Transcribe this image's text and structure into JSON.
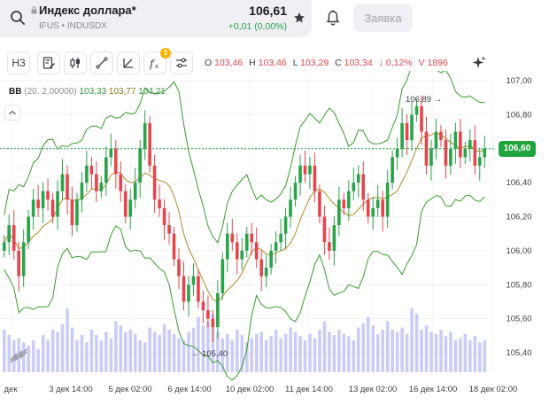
{
  "header": {
    "instrument_name": "Индекс доллара*",
    "instrument_sub": "IFUS • INDUSDX",
    "price": "106,61",
    "change": "+0,01 (0,00%)",
    "order_button": "Заявка"
  },
  "toolbar": {
    "timeframe": "Н3",
    "indicator_badge": "1",
    "ohlc": {
      "o_label": "O",
      "o_value": "103,46",
      "h_label": "H",
      "h_value": "103,46",
      "l_label": "L",
      "l_value": "103,29",
      "c_label": "C",
      "c_value": "103,34",
      "chg": "↓ 0,12%",
      "volume": "V 1896"
    }
  },
  "indicator": {
    "name": "BB",
    "params": "(20, 2,00000)",
    "lower": "103,33",
    "middle": "103,77",
    "upper": "104,21"
  },
  "colors": {
    "up": "#2aa34a",
    "down": "#e4464e",
    "volume": "#c9cdf6",
    "bands": "#3a9a2c",
    "middle": "#b08a2a"
  },
  "chart_data": {
    "type": "candlestick",
    "y_ticks": [
      "107,00",
      "106,80",
      "106,60",
      "106,40",
      "106,20",
      "106,00",
      "105,80",
      "105,60",
      "105,40"
    ],
    "ylim": [
      105.3,
      107.05
    ],
    "x_ticks": [
      "дек",
      "3 дек 14:00",
      "5 дек 02:00",
      "6 дек 14:00",
      "10 дек 02:00",
      "11 дек 14:00",
      "13 дек 02:00",
      "16 дек 14:00",
      "18 дек 02:00"
    ],
    "current_price": "106,60",
    "current_value": 106.6,
    "max_annotation": "106,89",
    "min_annotation": "105,40",
    "closes": [
      106.05,
      106.15,
      106.0,
      105.85,
      106.05,
      106.2,
      106.3,
      106.25,
      106.35,
      106.3,
      106.2,
      106.35,
      106.45,
      106.3,
      106.15,
      106.3,
      106.4,
      106.5,
      106.45,
      106.35,
      106.4,
      106.55,
      106.6,
      106.45,
      106.35,
      106.2,
      106.3,
      106.4,
      106.6,
      106.75,
      106.5,
      106.3,
      106.25,
      106.15,
      106.1,
      105.95,
      105.85,
      105.7,
      105.8,
      105.85,
      105.7,
      105.65,
      105.6,
      105.55,
      105.75,
      105.95,
      106.1,
      106.05,
      105.95,
      106.0,
      106.1,
      106.05,
      105.95,
      105.85,
      105.9,
      106.0,
      106.05,
      106.1,
      106.2,
      106.3,
      106.4,
      106.5,
      106.45,
      106.5,
      106.35,
      106.2,
      106.05,
      106.0,
      106.15,
      106.3,
      106.25,
      106.35,
      106.4,
      106.45,
      106.3,
      106.2,
      106.25,
      106.3,
      106.2,
      106.4,
      106.55,
      106.6,
      106.75,
      106.65,
      106.8,
      106.85,
      106.7,
      106.5,
      106.6,
      106.7,
      106.65,
      106.5,
      106.6,
      106.7,
      106.55,
      106.6,
      106.65,
      106.5,
      106.55,
      106.6
    ],
    "volumes": [
      40,
      35,
      30,
      32,
      28,
      25,
      30,
      22,
      35,
      30,
      40,
      38,
      45,
      60,
      42,
      30,
      35,
      28,
      40,
      35,
      30,
      38,
      32,
      48,
      44,
      38,
      40,
      36,
      30,
      28,
      42,
      38,
      35,
      45,
      40,
      36,
      32,
      30,
      38,
      42,
      52,
      44,
      48,
      55,
      38,
      32,
      36,
      30,
      40,
      35,
      28,
      32,
      36,
      38,
      30,
      34,
      40,
      32,
      36,
      42,
      38,
      34,
      30,
      36,
      32,
      40,
      48,
      38,
      35,
      40,
      36,
      34,
      30,
      42,
      46,
      52,
      44,
      36,
      40,
      48,
      40,
      38,
      42,
      36,
      60,
      55,
      40,
      44,
      38,
      36,
      40,
      34,
      38,
      30,
      32,
      36,
      30,
      34,
      28,
      30
    ]
  }
}
